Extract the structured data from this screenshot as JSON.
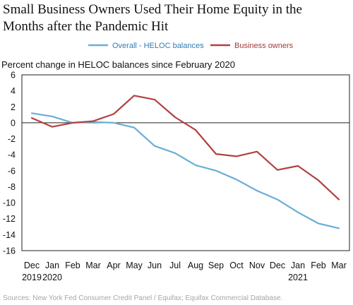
{
  "chart_data": {
    "type": "line",
    "title_lines": [
      "Small Business Owners Used Their Home Equity in the",
      "Months after the Pandemic Hit"
    ],
    "ylabel": "Percent change in HELOC balances since February 2020",
    "source": "Sources: New York Fed Consumer Credit Panel / Equifax; Equifax Commercial Database.",
    "categories": [
      "Dec",
      "Jan",
      "Feb",
      "Mar",
      "Apr",
      "May",
      "Jun",
      "Jul",
      "Aug",
      "Sep",
      "Oct",
      "Nov",
      "Dec",
      "Jan",
      "Feb",
      "Mar"
    ],
    "year_labels": [
      "2019",
      "2020",
      "",
      "",
      "",
      "",
      "",
      "",
      "",
      "",
      "",
      "",
      "",
      "2021",
      "",
      ""
    ],
    "yticks": [
      6,
      4,
      2,
      0,
      -2,
      -4,
      -6,
      -8,
      -10,
      -12,
      -14,
      -16
    ],
    "ylim": [
      -16,
      6
    ],
    "grid": false,
    "legend_position": "top-center",
    "series": [
      {
        "name": "Overall - HELOC balances",
        "color": "#6aaed6",
        "values": [
          1.2,
          0.8,
          0.0,
          0.1,
          0.0,
          -0.6,
          -2.9,
          -3.8,
          -5.3,
          -6.0,
          -7.1,
          -8.5,
          -9.6,
          -11.2,
          -12.6,
          -13.2
        ]
      },
      {
        "name": "Business owners",
        "color": "#b34040",
        "values": [
          0.6,
          -0.5,
          0.0,
          0.2,
          1.1,
          3.4,
          2.9,
          0.7,
          -0.9,
          -3.9,
          -4.2,
          -3.6,
          -5.9,
          -5.4,
          -7.2,
          -9.6
        ]
      }
    ]
  }
}
